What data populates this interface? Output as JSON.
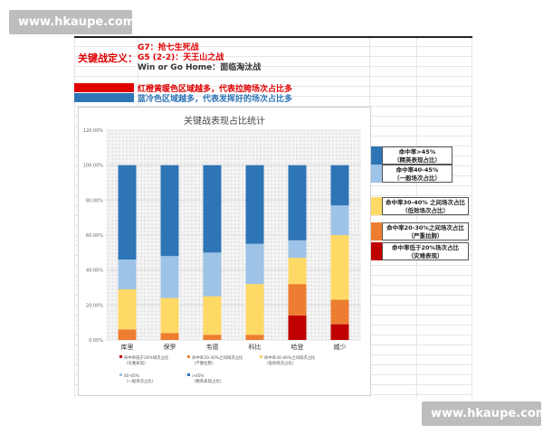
{
  "watermark": "www.hkaupe.com",
  "definitions": {
    "label": "关键战定义：",
    "lines": [
      "G7：抢七生死战",
      "G5 (2-2)：天王山之战",
      "Win or Go Home：面临淘汰战"
    ]
  },
  "color_notes": [
    {
      "text": "红橙黄暖色区域越多，代表拉胯场次占比多",
      "color": "#e00000"
    },
    {
      "text": "蓝冷色区域越多，代表发挥好的场次占比多",
      "color": "#2e75b6"
    }
  ],
  "colors": {
    "lt20": "#c00000",
    "p20_30": "#ed7d31",
    "p30_40": "#ffd966",
    "p40_45": "#9dc3e6",
    "gt45": "#2e75b6",
    "band_warm": "#e00000",
    "band_cool": "#2e75b6"
  },
  "side_legend": [
    {
      "lines": [
        "命中率>45%",
        "（精英表现占比）"
      ],
      "color": "#2e75b6"
    },
    {
      "lines": [
        "命中率40-45%",
        "（一般场次占比）"
      ],
      "color": "#9dc3e6"
    },
    {
      "lines": [
        "命中率30-40% 之间场次占比",
        "（低效场次占比）"
      ],
      "color": "#ffd966"
    },
    {
      "lines": [
        "命中率20-30%之间场次占比",
        "（严重拉胯）"
      ],
      "color": "#ed7d31"
    },
    {
      "lines": [
        "命中率低于20%场次占比",
        "（灾难表现）"
      ],
      "color": "#c00000"
    }
  ],
  "chart_data": {
    "type": "bar",
    "stacked": true,
    "title": "关键战表现占比统计",
    "categories": [
      "库里",
      "保罗",
      "韦德",
      "科比",
      "哈登",
      "威少"
    ],
    "ylim": [
      0,
      120
    ],
    "yticks": [
      "0.00%",
      "20.00%",
      "40.00%",
      "60.00%",
      "80.00%",
      "100.00%",
      "120.00%"
    ],
    "series": [
      {
        "name": "命中率低于20%场次占比（灾难表现）",
        "color": "#c00000",
        "values": [
          0,
          0,
          0,
          0,
          14,
          9
        ]
      },
      {
        "name": "命中率20-30%之间场次占比（严重拉胯）",
        "color": "#ed7d31",
        "values": [
          6,
          4,
          3,
          3,
          18,
          14
        ]
      },
      {
        "name": "命中率30-40%之间场次占比（低效场次占比）",
        "color": "#ffd966",
        "values": [
          23,
          20,
          22,
          29,
          15,
          37
        ]
      },
      {
        "name": "40-45%（一般场次占比）",
        "color": "#9dc3e6",
        "values": [
          17,
          24,
          25,
          23,
          10,
          17
        ]
      },
      {
        "name": ">45%（精英表现占比）",
        "color": "#2e75b6",
        "values": [
          54,
          52,
          50,
          45,
          43,
          23
        ]
      }
    ],
    "legend": [
      "命中率低于20%场次占比（灾难表现）",
      "命中率20-30%之间场次占比（严重拉胯）",
      "命中率30-40%之间场次占比（低效场次占比）",
      "40-45%（一般场次占比）",
      ">45%（精英表现占比）"
    ],
    "legend_position": "bottom",
    "grid": true
  }
}
